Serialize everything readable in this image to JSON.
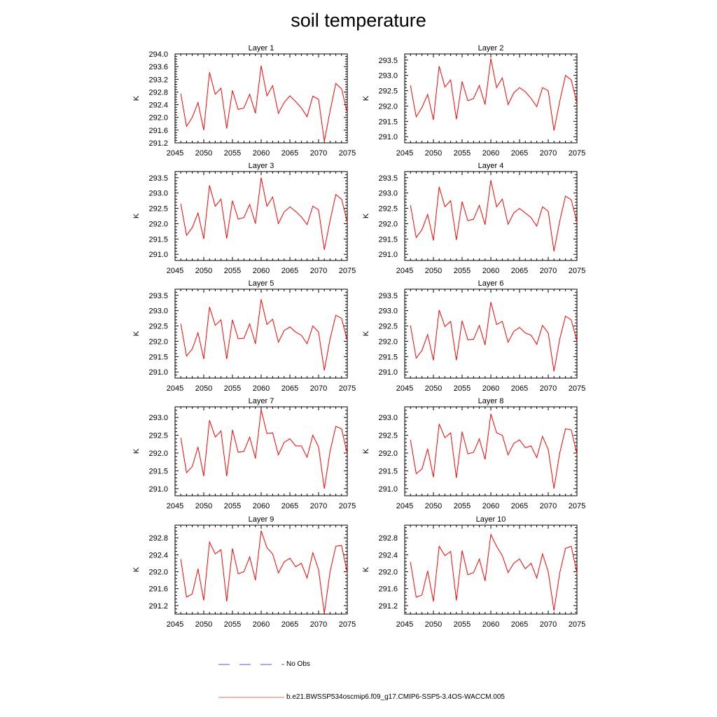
{
  "title": "soil temperature",
  "legend": {
    "items": [
      {
        "label": "No Obs",
        "color": "#5a5ad0",
        "style": "dashed"
      },
      {
        "label": "b.e21.BWSSP534oscmip6.f09_g17.CMIP6-SSP5-3.4OS-WACCM.005",
        "color": "#ff0000",
        "style": "solid"
      }
    ]
  },
  "chart_data": [
    {
      "type": "line",
      "title": "Layer 1",
      "ylabel": "K",
      "xlim": [
        2045,
        2075
      ],
      "ylim": [
        291.2,
        294.0
      ],
      "xticks": [
        2045,
        2050,
        2055,
        2060,
        2065,
        2070,
        2075
      ],
      "yticks": [
        291.2,
        291.6,
        292.0,
        292.4,
        292.8,
        293.2,
        293.6,
        294.0
      ],
      "ytick_decimals": 1,
      "x": [
        2046,
        2047,
        2048,
        2049,
        2050,
        2051,
        2052,
        2053,
        2054,
        2055,
        2056,
        2057,
        2058,
        2059,
        2060,
        2061,
        2062,
        2063,
        2064,
        2065,
        2066,
        2067,
        2068,
        2069,
        2070,
        2071,
        2072,
        2073,
        2074,
        2075
      ],
      "series": [
        {
          "values": [
            292.75,
            291.72,
            292.0,
            292.47,
            291.6,
            293.42,
            292.73,
            292.92,
            291.65,
            292.85,
            292.25,
            292.3,
            292.73,
            292.13,
            293.63,
            292.68,
            293.0,
            292.13,
            292.47,
            292.68,
            292.5,
            292.3,
            292.02,
            292.67,
            292.57,
            291.25,
            292.2,
            293.07,
            292.9,
            292.15
          ]
        }
      ]
    },
    {
      "type": "line",
      "title": "Layer 2",
      "ylabel": "K",
      "xlim": [
        2045,
        2075
      ],
      "ylim": [
        290.8,
        293.7
      ],
      "xticks": [
        2045,
        2050,
        2055,
        2060,
        2065,
        2070,
        2075
      ],
      "yticks": [
        291.0,
        291.5,
        292.0,
        292.5,
        293.0,
        293.5
      ],
      "ytick_decimals": 1,
      "x": [
        2046,
        2047,
        2048,
        2049,
        2050,
        2051,
        2052,
        2053,
        2054,
        2055,
        2056,
        2057,
        2058,
        2059,
        2060,
        2061,
        2062,
        2063,
        2064,
        2065,
        2066,
        2067,
        2068,
        2069,
        2070,
        2071,
        2072,
        2073,
        2074,
        2075
      ],
      "series": [
        {
          "values": [
            292.67,
            291.65,
            291.95,
            292.38,
            291.55,
            293.3,
            292.62,
            292.85,
            291.57,
            292.8,
            292.17,
            292.25,
            292.67,
            292.05,
            293.55,
            292.6,
            292.92,
            292.05,
            292.43,
            292.6,
            292.47,
            292.25,
            291.98,
            292.6,
            292.5,
            291.2,
            292.15,
            293.0,
            292.85,
            292.1
          ]
        }
      ]
    },
    {
      "type": "line",
      "title": "Layer 3",
      "ylabel": "K",
      "xlim": [
        2045,
        2075
      ],
      "ylim": [
        290.8,
        293.7
      ],
      "xticks": [
        2045,
        2050,
        2055,
        2060,
        2065,
        2070,
        2075
      ],
      "yticks": [
        291.0,
        291.5,
        292.0,
        292.5,
        293.0,
        293.5
      ],
      "ytick_decimals": 1,
      "x": [
        2046,
        2047,
        2048,
        2049,
        2050,
        2051,
        2052,
        2053,
        2054,
        2055,
        2056,
        2057,
        2058,
        2059,
        2060,
        2061,
        2062,
        2063,
        2064,
        2065,
        2066,
        2067,
        2068,
        2069,
        2070,
        2071,
        2072,
        2073,
        2074,
        2075
      ],
      "series": [
        {
          "values": [
            292.65,
            291.62,
            291.87,
            292.35,
            291.5,
            293.25,
            292.57,
            292.8,
            291.52,
            292.75,
            292.15,
            292.2,
            292.63,
            292.0,
            293.5,
            292.57,
            292.87,
            292.0,
            292.38,
            292.55,
            292.4,
            292.22,
            291.97,
            292.57,
            292.45,
            291.15,
            292.1,
            292.95,
            292.8,
            292.05
          ]
        }
      ]
    },
    {
      "type": "line",
      "title": "Layer 4",
      "ylabel": "K",
      "xlim": [
        2045,
        2075
      ],
      "ylim": [
        290.8,
        293.7
      ],
      "xticks": [
        2045,
        2050,
        2055,
        2060,
        2065,
        2070,
        2075
      ],
      "yticks": [
        291.0,
        291.5,
        292.0,
        292.5,
        293.0,
        293.5
      ],
      "ytick_decimals": 1,
      "x": [
        2046,
        2047,
        2048,
        2049,
        2050,
        2051,
        2052,
        2053,
        2054,
        2055,
        2056,
        2057,
        2058,
        2059,
        2060,
        2061,
        2062,
        2063,
        2064,
        2065,
        2066,
        2067,
        2068,
        2069,
        2070,
        2071,
        2072,
        2073,
        2074,
        2075
      ],
      "series": [
        {
          "values": [
            292.6,
            291.55,
            291.8,
            292.3,
            291.45,
            293.2,
            292.55,
            292.75,
            291.47,
            292.72,
            292.1,
            292.15,
            292.6,
            291.97,
            293.42,
            292.55,
            292.8,
            291.98,
            292.35,
            292.5,
            292.35,
            292.2,
            291.92,
            292.55,
            292.4,
            291.1,
            292.08,
            292.9,
            292.78,
            292.05
          ]
        }
      ]
    },
    {
      "type": "line",
      "title": "Layer 5",
      "ylabel": "K",
      "xlim": [
        2045,
        2075
      ],
      "ylim": [
        290.8,
        293.7
      ],
      "xticks": [
        2045,
        2050,
        2055,
        2060,
        2065,
        2070,
        2075
      ],
      "yticks": [
        291.0,
        291.5,
        292.0,
        292.5,
        293.0,
        293.5
      ],
      "ytick_decimals": 1,
      "x": [
        2046,
        2047,
        2048,
        2049,
        2050,
        2051,
        2052,
        2053,
        2054,
        2055,
        2056,
        2057,
        2058,
        2059,
        2060,
        2061,
        2062,
        2063,
        2064,
        2065,
        2066,
        2067,
        2068,
        2069,
        2070,
        2071,
        2072,
        2073,
        2074,
        2075
      ],
      "series": [
        {
          "values": [
            292.57,
            291.52,
            291.75,
            292.28,
            291.42,
            293.12,
            292.52,
            292.7,
            291.42,
            292.7,
            292.08,
            292.1,
            292.57,
            291.92,
            293.37,
            292.55,
            292.72,
            291.97,
            292.35,
            292.47,
            292.3,
            292.2,
            291.92,
            292.5,
            292.3,
            291.05,
            292.08,
            292.85,
            292.75,
            292.02
          ]
        }
      ]
    },
    {
      "type": "line",
      "title": "Layer 6",
      "ylabel": "K",
      "xlim": [
        2045,
        2075
      ],
      "ylim": [
        290.8,
        293.7
      ],
      "xticks": [
        2045,
        2050,
        2055,
        2060,
        2065,
        2070,
        2075
      ],
      "yticks": [
        291.0,
        291.5,
        292.0,
        292.5,
        293.0,
        293.5
      ],
      "ytick_decimals": 1,
      "x": [
        2046,
        2047,
        2048,
        2049,
        2050,
        2051,
        2052,
        2053,
        2054,
        2055,
        2056,
        2057,
        2058,
        2059,
        2060,
        2061,
        2062,
        2063,
        2064,
        2065,
        2066,
        2067,
        2068,
        2069,
        2070,
        2071,
        2072,
        2073,
        2074,
        2075
      ],
      "series": [
        {
          "values": [
            292.52,
            291.45,
            291.7,
            292.22,
            291.38,
            293.02,
            292.48,
            292.65,
            291.38,
            292.67,
            292.05,
            292.07,
            292.52,
            291.88,
            293.28,
            292.55,
            292.65,
            291.97,
            292.32,
            292.45,
            292.27,
            292.2,
            291.9,
            292.52,
            292.27,
            291.02,
            292.07,
            292.82,
            292.7,
            292.0
          ]
        }
      ]
    },
    {
      "type": "line",
      "title": "Layer 7",
      "ylabel": "K",
      "xlim": [
        2045,
        2075
      ],
      "ylim": [
        290.8,
        293.3
      ],
      "xticks": [
        2045,
        2050,
        2055,
        2060,
        2065,
        2070,
        2075
      ],
      "yticks": [
        291.0,
        291.5,
        292.0,
        292.5,
        293.0
      ],
      "ytick_decimals": 1,
      "x": [
        2046,
        2047,
        2048,
        2049,
        2050,
        2051,
        2052,
        2053,
        2054,
        2055,
        2056,
        2057,
        2058,
        2059,
        2060,
        2061,
        2062,
        2063,
        2064,
        2065,
        2066,
        2067,
        2068,
        2069,
        2070,
        2071,
        2072,
        2073,
        2074,
        2075
      ],
      "series": [
        {
          "values": [
            292.43,
            291.45,
            291.62,
            292.17,
            291.35,
            292.92,
            292.45,
            292.62,
            291.35,
            292.65,
            292.02,
            292.05,
            292.45,
            291.85,
            293.22,
            292.55,
            292.57,
            291.95,
            292.3,
            292.4,
            292.2,
            292.2,
            291.88,
            292.5,
            292.17,
            291.0,
            292.05,
            292.75,
            292.68,
            291.98
          ]
        }
      ]
    },
    {
      "type": "line",
      "title": "Layer 8",
      "ylabel": "K",
      "xlim": [
        2045,
        2075
      ],
      "ylim": [
        290.8,
        293.3
      ],
      "xticks": [
        2045,
        2050,
        2055,
        2060,
        2065,
        2070,
        2075
      ],
      "yticks": [
        291.0,
        291.5,
        292.0,
        292.5,
        293.0
      ],
      "ytick_decimals": 1,
      "x": [
        2046,
        2047,
        2048,
        2049,
        2050,
        2051,
        2052,
        2053,
        2054,
        2055,
        2056,
        2057,
        2058,
        2059,
        2060,
        2061,
        2062,
        2063,
        2064,
        2065,
        2066,
        2067,
        2068,
        2069,
        2070,
        2071,
        2072,
        2073,
        2074,
        2075
      ],
      "series": [
        {
          "values": [
            292.37,
            291.42,
            291.55,
            292.12,
            291.32,
            292.82,
            292.43,
            292.57,
            291.3,
            292.6,
            291.98,
            292.02,
            292.4,
            291.82,
            293.1,
            292.57,
            292.5,
            291.95,
            292.27,
            292.37,
            292.15,
            292.2,
            291.87,
            292.47,
            292.1,
            291.0,
            292.0,
            292.68,
            292.65,
            291.97
          ]
        }
      ]
    },
    {
      "type": "line",
      "title": "Layer 9",
      "ylabel": "K",
      "xlim": [
        2045,
        2075
      ],
      "ylim": [
        291.0,
        293.1
      ],
      "xticks": [
        2045,
        2050,
        2055,
        2060,
        2065,
        2070,
        2075
      ],
      "yticks": [
        291.2,
        291.6,
        292.0,
        292.4,
        292.8
      ],
      "ytick_decimals": 1,
      "x": [
        2046,
        2047,
        2048,
        2049,
        2050,
        2051,
        2052,
        2053,
        2054,
        2055,
        2056,
        2057,
        2058,
        2059,
        2060,
        2061,
        2062,
        2063,
        2064,
        2065,
        2066,
        2067,
        2068,
        2069,
        2070,
        2071,
        2072,
        2073,
        2074,
        2075
      ],
      "series": [
        {
          "values": [
            292.3,
            291.4,
            291.48,
            292.07,
            291.32,
            292.7,
            292.42,
            292.52,
            291.3,
            292.55,
            291.95,
            292.0,
            292.35,
            291.8,
            292.97,
            292.57,
            292.42,
            291.97,
            292.23,
            292.32,
            292.12,
            292.2,
            291.85,
            292.45,
            292.05,
            291.02,
            292.0,
            292.6,
            292.62,
            291.97
          ]
        }
      ]
    },
    {
      "type": "line",
      "title": "Layer 10",
      "ylabel": "K",
      "xlim": [
        2045,
        2075
      ],
      "ylim": [
        291.0,
        293.1
      ],
      "xticks": [
        2045,
        2050,
        2055,
        2060,
        2065,
        2070,
        2075
      ],
      "yticks": [
        291.2,
        291.6,
        292.0,
        292.4,
        292.8
      ],
      "ytick_decimals": 1,
      "x": [
        2046,
        2047,
        2048,
        2049,
        2050,
        2051,
        2052,
        2053,
        2054,
        2055,
        2056,
        2057,
        2058,
        2059,
        2060,
        2061,
        2062,
        2063,
        2064,
        2065,
        2066,
        2067,
        2068,
        2069,
        2070,
        2071,
        2072,
        2073,
        2074,
        2075
      ],
      "series": [
        {
          "values": [
            292.23,
            291.4,
            291.45,
            292.02,
            291.3,
            292.6,
            292.38,
            292.48,
            291.32,
            292.5,
            291.93,
            291.98,
            292.3,
            291.78,
            292.88,
            292.6,
            292.38,
            291.98,
            292.2,
            292.3,
            292.07,
            292.2,
            291.85,
            292.42,
            292.0,
            291.08,
            291.97,
            292.55,
            292.6,
            291.97
          ]
        }
      ]
    }
  ]
}
